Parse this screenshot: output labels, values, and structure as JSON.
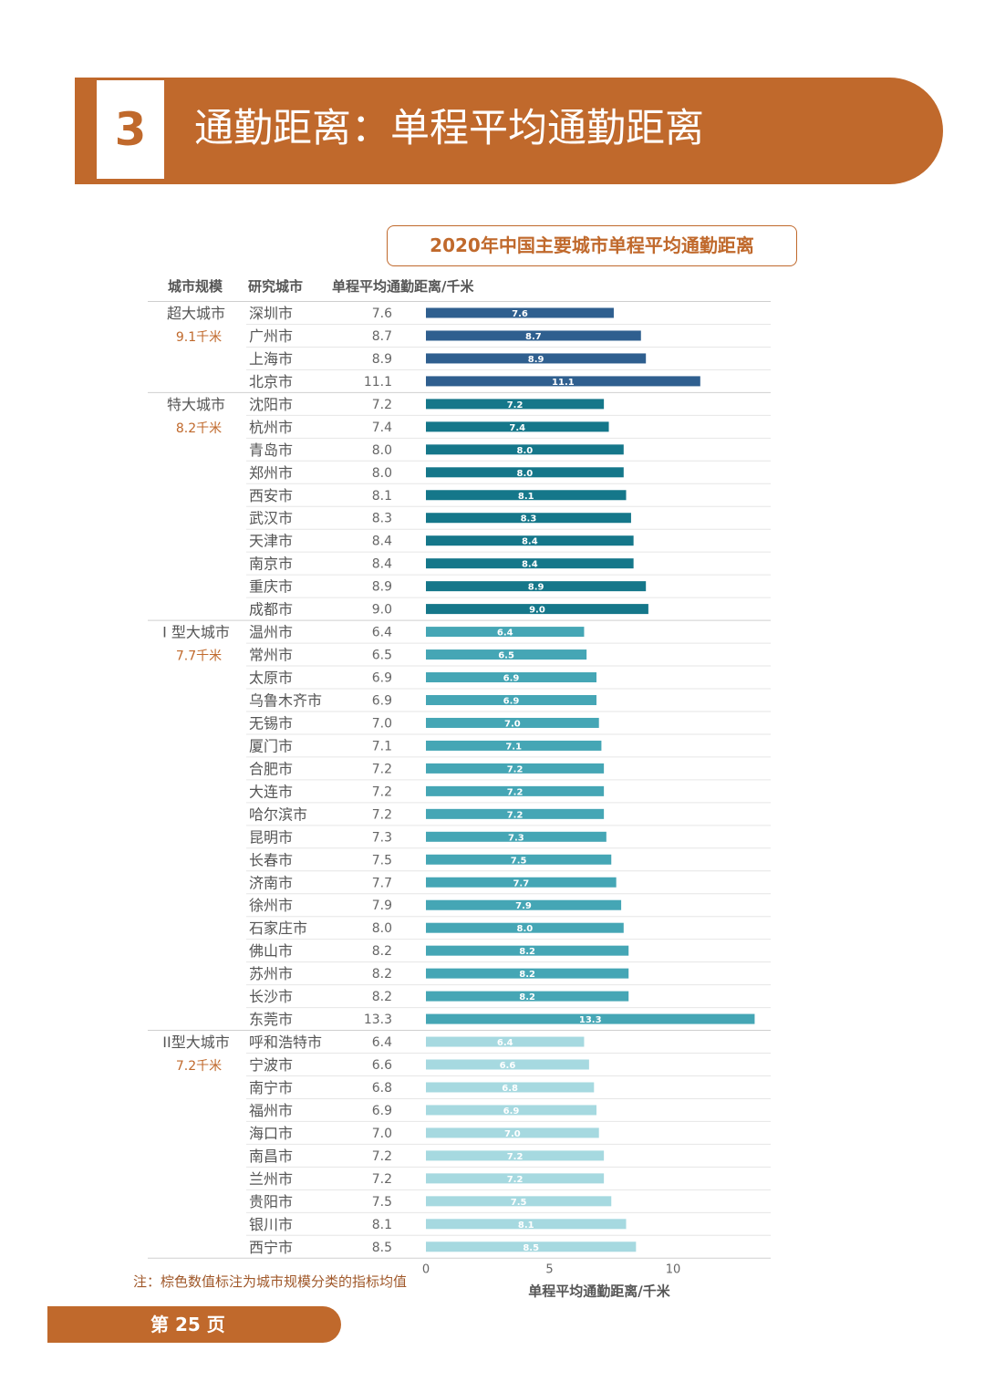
{
  "header": {
    "section_number": "3",
    "title": "通勤距离：单程平均通勤距离"
  },
  "table_headers": {
    "scale": "城市规模",
    "city": "研究城市",
    "value": "单程平均通勤距离/千米"
  },
  "note": "注：棕色数值标注为城市规模分类的指标均值",
  "page_label": "第 25 页",
  "colors": {
    "accent": "#c0692c",
    "super_large": "#2f5f8f",
    "mega": "#15778a",
    "type1": "#45a6b5",
    "type2": "#a6d9e0"
  },
  "chart_data": {
    "type": "bar",
    "orientation": "horizontal",
    "title": "2020年中国主要城市单程平均通勤距离",
    "xlabel": "单程平均通勤距离/千米",
    "xlim": [
      0,
      14
    ],
    "xticks": [
      "0",
      "5",
      "10"
    ],
    "groups": [
      {
        "name": "超大城市",
        "mean": "9.1千米",
        "color_key": "super_large",
        "cities": [
          "深圳市",
          "广州市",
          "上海市",
          "北京市"
        ],
        "labels": [
          "7.6",
          "8.7",
          "8.9",
          "11.1"
        ],
        "values": [
          7.6,
          8.7,
          8.9,
          11.1
        ]
      },
      {
        "name": "特大城市",
        "mean": "8.2千米",
        "color_key": "mega",
        "cities": [
          "沈阳市",
          "杭州市",
          "青岛市",
          "郑州市",
          "西安市",
          "武汉市",
          "天津市",
          "南京市",
          "重庆市",
          "成都市"
        ],
        "labels": [
          "7.2",
          "7.4",
          "8.0",
          "8.0",
          "8.1",
          "8.3",
          "8.4",
          "8.4",
          "8.9",
          "9.0"
        ],
        "values": [
          7.2,
          7.4,
          8.0,
          8.0,
          8.1,
          8.3,
          8.4,
          8.4,
          8.9,
          9.0
        ]
      },
      {
        "name": "I 型大城市",
        "mean": "7.7千米",
        "color_key": "type1",
        "cities": [
          "温州市",
          "常州市",
          "太原市",
          "乌鲁木齐市",
          "无锡市",
          "厦门市",
          "合肥市",
          "大连市",
          "哈尔滨市",
          "昆明市",
          "长春市",
          "济南市",
          "徐州市",
          "石家庄市",
          "佛山市",
          "苏州市",
          "长沙市",
          "东莞市"
        ],
        "labels": [
          "6.4",
          "6.5",
          "6.9",
          "6.9",
          "7.0",
          "7.1",
          "7.2",
          "7.2",
          "7.2",
          "7.3",
          "7.5",
          "7.7",
          "7.9",
          "8.0",
          "8.2",
          "8.2",
          "8.2",
          "13.3"
        ],
        "values": [
          6.4,
          6.5,
          6.9,
          6.9,
          7.0,
          7.1,
          7.2,
          7.2,
          7.2,
          7.3,
          7.5,
          7.7,
          7.9,
          8.0,
          8.2,
          8.2,
          8.2,
          13.3
        ]
      },
      {
        "name": "II型大城市",
        "mean": "7.2千米",
        "color_key": "type2",
        "cities": [
          "呼和浩特市",
          "宁波市",
          "南宁市",
          "福州市",
          "海口市",
          "南昌市",
          "兰州市",
          "贵阳市",
          "银川市",
          "西宁市"
        ],
        "labels": [
          "6.4",
          "6.6",
          "6.8",
          "6.9",
          "7.0",
          "7.2",
          "7.2",
          "7.5",
          "8.1",
          "8.5"
        ],
        "values": [
          6.4,
          6.6,
          6.8,
          6.9,
          7.0,
          7.2,
          7.2,
          7.5,
          8.1,
          8.5
        ]
      }
    ]
  }
}
